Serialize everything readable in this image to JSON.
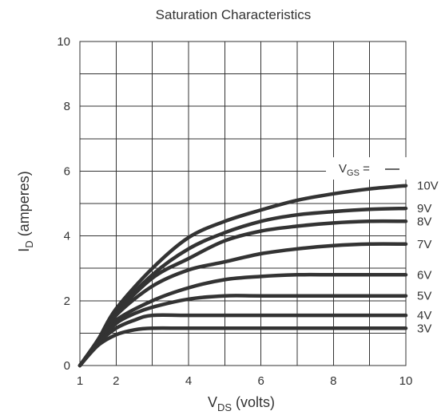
{
  "chart_data": {
    "type": "line",
    "title": "Saturation Characteristics",
    "xlabel": {
      "main": "V",
      "sub": "DS",
      "suffix": " (volts)"
    },
    "ylabel": {
      "main": "I",
      "sub": "D",
      "suffix": " (amperes)"
    },
    "xlim": [
      1,
      10
    ],
    "ylim": [
      0,
      10
    ],
    "x_ticks": [
      "1",
      "2",
      "4",
      "6",
      "8",
      "10"
    ],
    "y_ticks": [
      "0",
      "2",
      "4",
      "6",
      "8",
      "10"
    ],
    "grid": true,
    "legend_header": {
      "main": "V",
      "sub": "GS",
      "suffix": " ="
    },
    "line_color": "#333333",
    "series": [
      {
        "name": "10V",
        "points": [
          [
            1,
            0
          ],
          [
            1.5,
            0.8
          ],
          [
            2,
            1.75
          ],
          [
            3,
            3.0
          ],
          [
            4,
            3.95
          ],
          [
            5,
            4.45
          ],
          [
            6,
            4.8
          ],
          [
            7,
            5.1
          ],
          [
            8,
            5.3
          ],
          [
            9,
            5.45
          ],
          [
            10,
            5.55
          ]
        ]
      },
      {
        "name": "9V",
        "points": [
          [
            1,
            0
          ],
          [
            1.5,
            0.78
          ],
          [
            2,
            1.65
          ],
          [
            3,
            2.8
          ],
          [
            4,
            3.6
          ],
          [
            5,
            4.1
          ],
          [
            6,
            4.45
          ],
          [
            7,
            4.65
          ],
          [
            8,
            4.75
          ],
          [
            9,
            4.82
          ],
          [
            10,
            4.85
          ]
        ]
      },
      {
        "name": "8V",
        "points": [
          [
            1,
            0
          ],
          [
            1.5,
            0.76
          ],
          [
            2,
            1.6
          ],
          [
            3,
            2.7
          ],
          [
            4,
            3.3
          ],
          [
            5,
            3.85
          ],
          [
            6,
            4.15
          ],
          [
            7,
            4.3
          ],
          [
            8,
            4.4
          ],
          [
            9,
            4.45
          ],
          [
            10,
            4.45
          ]
        ]
      },
      {
        "name": "7V",
        "points": [
          [
            1,
            0
          ],
          [
            1.5,
            0.74
          ],
          [
            2,
            1.55
          ],
          [
            3,
            2.45
          ],
          [
            4,
            2.95
          ],
          [
            5,
            3.2
          ],
          [
            6,
            3.45
          ],
          [
            7,
            3.6
          ],
          [
            8,
            3.7
          ],
          [
            9,
            3.75
          ],
          [
            10,
            3.75
          ]
        ]
      },
      {
        "name": "6V",
        "points": [
          [
            1,
            0
          ],
          [
            1.5,
            0.72
          ],
          [
            2,
            1.4
          ],
          [
            3,
            2.0
          ],
          [
            4,
            2.4
          ],
          [
            5,
            2.65
          ],
          [
            6,
            2.75
          ],
          [
            7,
            2.8
          ],
          [
            8,
            2.8
          ],
          [
            9,
            2.8
          ],
          [
            10,
            2.8
          ]
        ]
      },
      {
        "name": "5V",
        "points": [
          [
            1,
            0
          ],
          [
            1.5,
            0.7
          ],
          [
            2,
            1.3
          ],
          [
            2.5,
            1.6
          ],
          [
            3,
            1.8
          ],
          [
            4,
            2.05
          ],
          [
            5,
            2.15
          ],
          [
            6,
            2.15
          ],
          [
            8,
            2.15
          ],
          [
            10,
            2.15
          ]
        ]
      },
      {
        "name": "4V",
        "points": [
          [
            1,
            0
          ],
          [
            1.5,
            0.68
          ],
          [
            2,
            1.15
          ],
          [
            2.5,
            1.4
          ],
          [
            3,
            1.55
          ],
          [
            4,
            1.55
          ],
          [
            6,
            1.55
          ],
          [
            8,
            1.55
          ],
          [
            10,
            1.55
          ]
        ]
      },
      {
        "name": "3V",
        "points": [
          [
            1,
            0
          ],
          [
            1.5,
            0.62
          ],
          [
            2,
            0.95
          ],
          [
            2.5,
            1.1
          ],
          [
            3,
            1.15
          ],
          [
            4,
            1.15
          ],
          [
            6,
            1.15
          ],
          [
            8,
            1.15
          ],
          [
            10,
            1.15
          ]
        ]
      }
    ]
  }
}
